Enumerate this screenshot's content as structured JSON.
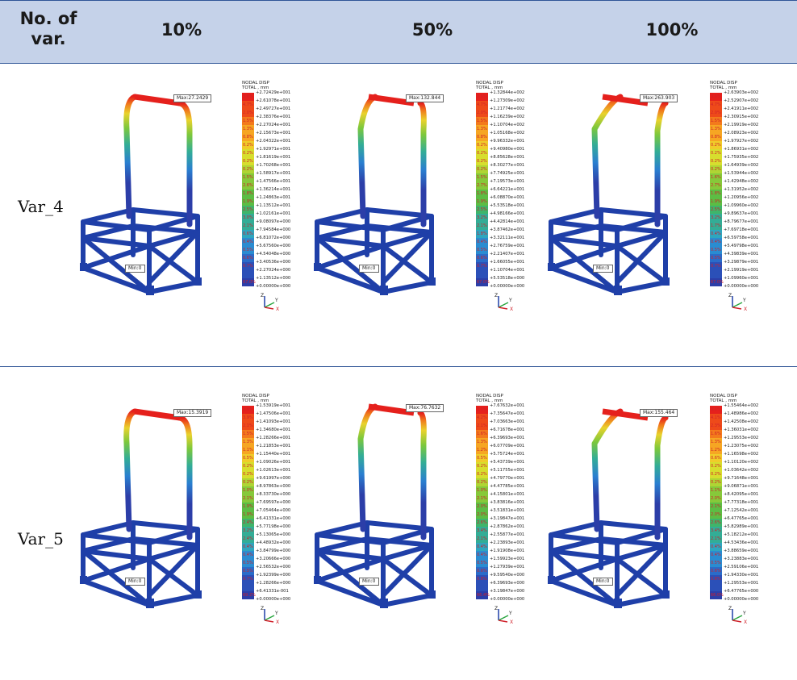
{
  "table": {
    "header": [
      "No. of var.",
      "10%",
      "50%",
      "100%"
    ],
    "rows": [
      {
        "label": "Var_4",
        "cells": [
          {
            "max_tag": "Max:27.2429",
            "min_tag": "Min:0",
            "legend_title": "NODAL DISP\nTOTAL , mm",
            "values": [
              "+2.72429e+001",
              "+2.61078e+001",
              "+2.49727e+001",
              "+2.38376e+001",
              "+2.27024e+001",
              "+2.15673e+001",
              "+2.04322e+001",
              "+1.92971e+001",
              "+1.81619e+001",
              "+1.70268e+001",
              "+1.58917e+001",
              "+1.47566e+001",
              "+1.36214e+001",
              "+1.24863e+001",
              "+1.13512e+001",
              "+1.02161e+001",
              "+9.08097e+000",
              "+7.94584e+000",
              "+6.81072e+000",
              "+5.67560e+000",
              "+4.54048e+000",
              "+3.40536e+000",
              "+2.27024e+000",
              "+1.13512e+000",
              "+0.00000e+000"
            ],
            "pcts": [
              "3.6%",
              "4.7%",
              "2.0%",
              "1.5%",
              "1.3%",
              "0.8%",
              "0.2%",
              "0.2%",
              "0.2%",
              "0.2%",
              "1.5%",
              "2.6%",
              "1.8%",
              "1.9%",
              "2.5%",
              "3.0%",
              "2.1%",
              "0.6%",
              "0.4%",
              "0.5%",
              "0.6%",
              "0.7%",
              "67.0%"
            ]
          },
          {
            "max_tag": "Max:132.844",
            "min_tag": "Min:0",
            "legend_title": "NODAL DISP\nTOTAL , mm",
            "values": [
              "+1.32844e+002",
              "+1.27309e+002",
              "+1.21774e+002",
              "+1.16239e+002",
              "+1.10704e+002",
              "+1.05168e+002",
              "+9.96332e+001",
              "+9.40980e+001",
              "+8.85628e+001",
              "+8.30277e+001",
              "+7.74925e+001",
              "+7.19573e+001",
              "+6.64221e+001",
              "+6.08870e+001",
              "+5.53518e+001",
              "+4.98166e+001",
              "+4.42814e+001",
              "+3.87462e+001",
              "+3.32111e+001",
              "+2.76759e+001",
              "+2.21407e+001",
              "+1.66055e+001",
              "+1.10704e+001",
              "+5.53518e+000",
              "+0.00000e+000"
            ],
            "pcts": [
              "3.6%",
              "4.7%",
              "2.0%",
              "1.5%",
              "1.3%",
              "0.8%",
              "0.2%",
              "0.2%",
              "0.2%",
              "0.2%",
              "1.5%",
              "2.7%",
              "1.8%",
              "1.9%",
              "2.5%",
              "3.2%",
              "2.1%",
              "1.8%",
              "0.4%",
              "0.5%",
              "0.6%",
              "0.7%",
              "67.0%"
            ]
          },
          {
            "max_tag": "Max:263.903",
            "min_tag": "Min:0",
            "legend_title": "NODAL DISP\nTOTAL , mm",
            "values": [
              "+2.63903e+002",
              "+2.52907e+002",
              "+2.41911e+002",
              "+2.30915e+002",
              "+2.19919e+002",
              "+2.08923e+002",
              "+1.97927e+002",
              "+1.86931e+002",
              "+1.75935e+002",
              "+1.64939e+002",
              "+1.53944e+002",
              "+1.42948e+002",
              "+1.31952e+002",
              "+1.20956e+002",
              "+1.09960e+002",
              "+9.89637e+001",
              "+8.79677e+001",
              "+7.69718e+001",
              "+6.59758e+001",
              "+5.49798e+001",
              "+4.39839e+001",
              "+3.29879e+001",
              "+2.19919e+001",
              "+1.09960e+001",
              "+0.00000e+000"
            ],
            "pcts": [
              "3.6%",
              "4.7%",
              "2.0%",
              "1.5%",
              "1.3%",
              "0.8%",
              "0.2%",
              "0.2%",
              "0.2%",
              "0.2%",
              "1.6%",
              "2.7%",
              "1.8%",
              "1.9%",
              "2.5%",
              "3.2%",
              "1.7%",
              "0.4%",
              "0.4%",
              "0.5%",
              "0.5%",
              "0.7%",
              "67.0%"
            ]
          }
        ]
      },
      {
        "label": "Var_5",
        "cells": [
          {
            "max_tag": "Max:15.3919",
            "min_tag": "Min:0",
            "legend_title": "NODAL DISP\nTOTAL , mm",
            "values": [
              "+1.53919e+001",
              "+1.47506e+001",
              "+1.41093e+001",
              "+1.34680e+001",
              "+1.28266e+001",
              "+1.21853e+001",
              "+1.15440e+001",
              "+1.09026e+001",
              "+1.02613e+001",
              "+9.61997e+000",
              "+8.97863e+000",
              "+8.33730e+000",
              "+7.69597e+000",
              "+7.05464e+000",
              "+6.41331e+000",
              "+5.77198e+000",
              "+5.13065e+000",
              "+4.48932e+000",
              "+3.84799e+000",
              "+3.20666e+000",
              "+2.56532e+000",
              "+1.92399e+000",
              "+1.28266e+000",
              "+6.41331e-001",
              "+0.00000e+000"
            ],
            "pcts": [
              "2.9%",
              "3.9%",
              "2.1%",
              "1.5%",
              "1.3%",
              "1.1%",
              "0.5%",
              "0.2%",
              "0.2%",
              "0.2%",
              "1.0%",
              "2.1%",
              "1.9%",
              "1.9%",
              "2.4%",
              "3.2%",
              "2.4%",
              "0.4%",
              "0.4%",
              "0.5%",
              "0.5%",
              "0.7%",
              "69.2%"
            ]
          },
          {
            "max_tag": "Max:76.7632",
            "min_tag": "Min:0",
            "legend_title": "NODAL DISP\nTOTAL , mm",
            "values": [
              "+7.67632e+001",
              "+7.35647e+001",
              "+7.03663e+001",
              "+6.71678e+001",
              "+6.39693e+001",
              "+6.07709e+001",
              "+5.75724e+001",
              "+5.43739e+001",
              "+5.11755e+001",
              "+4.79770e+001",
              "+4.47785e+001",
              "+4.15801e+001",
              "+3.83816e+001",
              "+3.51831e+001",
              "+3.19847e+001",
              "+2.87862e+001",
              "+2.55877e+001",
              "+2.23893e+001",
              "+1.91908e+001",
              "+1.59923e+001",
              "+1.27939e+001",
              "+9.59540e+000",
              "+6.39693e+000",
              "+3.19847e+000",
              "+0.00000e+000"
            ],
            "pcts": [
              "3.1%",
              "4.2%",
              "2.1%",
              "1.6%",
              "1.3%",
              "1.2%",
              "0.5%",
              "0.2%",
              "0.2%",
              "0.2%",
              "1.0%",
              "2.1%",
              "2.0%",
              "2.0%",
              "2.6%",
              "3.4%",
              "2.1%",
              "0.4%",
              "0.4%",
              "0.5%",
              "0.6%",
              "0.8%",
              "66.4%"
            ]
          },
          {
            "max_tag": "Max:155.464",
            "min_tag": "Min:0",
            "legend_title": "NODAL DISP\nTOTAL , mm",
            "values": [
              "+1.55464e+002",
              "+1.48986e+002",
              "+1.42508e+002",
              "+1.36031e+002",
              "+1.29553e+002",
              "+1.23075e+002",
              "+1.16598e+002",
              "+1.10120e+002",
              "+1.03642e+002",
              "+9.71648e+001",
              "+9.06871e+001",
              "+8.42095e+001",
              "+7.77318e+001",
              "+7.12542e+001",
              "+6.47765e+001",
              "+5.82989e+001",
              "+5.18212e+001",
              "+4.53436e+001",
              "+3.88659e+001",
              "+3.23883e+001",
              "+2.59106e+001",
              "+1.94330e+001",
              "+1.29553e+001",
              "+6.47765e+000",
              "+0.00000e+000"
            ],
            "pcts": [
              "3.1%",
              "4.1%",
              "2.3%",
              "1.6%",
              "1.3%",
              "1.2%",
              "0.6%",
              "0.2%",
              "0.2%",
              "0.2%",
              "1.1%",
              "2.0%",
              "2.1%",
              "2.0%",
              "2.6%",
              "3.4%",
              "2.1%",
              "0.4%",
              "0.4%",
              "0.5%",
              "0.6%",
              "0.8%",
              "66.0%"
            ]
          }
        ]
      }
    ]
  },
  "axes_glyph": {
    "z": "Z",
    "y": "Y",
    "x": "X"
  },
  "colors": {
    "header_bg": "#c5d2e9",
    "rule": "#2f5597",
    "frame": "#1f3fa8",
    "max_red": "#e5201c"
  },
  "colormap": [
    "#e5201c",
    "#ee4a1a",
    "#f37a1c",
    "#f6a623",
    "#f0cc2a",
    "#d7de2e",
    "#afd534",
    "#86c93a",
    "#5cbd44",
    "#3fb56a",
    "#33ad96",
    "#2ea6bf",
    "#2a8cd1",
    "#2a6cc9",
    "#2b50b8",
    "#2c3ea8"
  ]
}
